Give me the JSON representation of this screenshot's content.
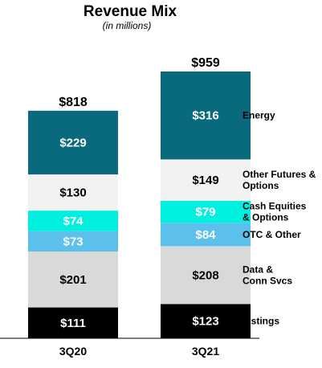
{
  "chart_data": {
    "type": "bar",
    "stacked": true,
    "title": "Revenue Mix",
    "subtitle": "(in millions)",
    "categories": [
      "3Q20",
      "3Q21"
    ],
    "totals": [
      "$818",
      "$959"
    ],
    "total_values": [
      818,
      959
    ],
    "series": [
      {
        "name": "Listings",
        "values": [
          111,
          123
        ],
        "labels": [
          "$111",
          "$123"
        ],
        "color": "#000000",
        "label_color": "#ffffff"
      },
      {
        "name": "Data &\nConn Svcs",
        "values": [
          201,
          208
        ],
        "labels": [
          "$201",
          "$208"
        ],
        "color": "#d9d9d9",
        "label_color": "#000000"
      },
      {
        "name": "OTC & Other",
        "values": [
          73,
          84
        ],
        "labels": [
          "$73",
          "$84"
        ],
        "color": "#5bc0eb",
        "label_color": "#ffffff"
      },
      {
        "name": "Cash Equities\n& Options",
        "values": [
          74,
          79
        ],
        "labels": [
          "$74",
          "$79"
        ],
        "color": "#00f0e0",
        "label_color": "#ffffff"
      },
      {
        "name": "Other Futures &\nOptions",
        "values": [
          130,
          149
        ],
        "labels": [
          "$130",
          "$149"
        ],
        "color": "#f2f2f2",
        "label_color": "#000000"
      },
      {
        "name": "Energy",
        "values": [
          229,
          316
        ],
        "labels": [
          "$229",
          "$316"
        ],
        "color": "#09697d",
        "label_color": "#ffffff"
      }
    ],
    "legend_position": "right",
    "grid": false
  }
}
